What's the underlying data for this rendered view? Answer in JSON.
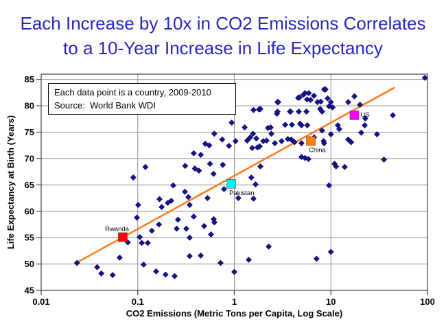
{
  "title": {
    "line1": "Each Increase by 10x in CO2 Emissions Correlates",
    "line2": "to a 10-Year Increase in Life Expectancy",
    "color": "#2727BE"
  },
  "annotation": {
    "line1": "Each data point is a country, 2009-2010",
    "line2": "Source:  World Bank WDI"
  },
  "chart_data": {
    "type": "scatter",
    "xlabel": "CO2 Emissions (Metric Tons per Capita, Log Scale)",
    "ylabel": "Life Expectancy at Birth (Years)",
    "x_scale": "log",
    "xlim": [
      0.01,
      100
    ],
    "ylim": [
      45,
      86
    ],
    "x_ticks": [
      "0.01",
      "0.1",
      "1",
      "10",
      "100"
    ],
    "y_ticks": [
      45,
      50,
      55,
      60,
      65,
      70,
      75,
      80,
      85
    ],
    "grid": true,
    "marker": "diamond",
    "marker_color": "#14148C",
    "grid_color": "#8C8C8C",
    "axis_color": "#404040",
    "points": [
      [
        0.0235,
        50.2
      ],
      [
        0.038,
        49.4
      ],
      [
        0.042,
        48.2
      ],
      [
        0.055,
        47.9
      ],
      [
        0.065,
        51.2
      ],
      [
        0.079,
        54.1
      ],
      [
        0.09,
        66.4
      ],
      [
        0.098,
        58.8
      ],
      [
        0.101,
        61.2
      ],
      [
        0.105,
        55.1
      ],
      [
        0.11,
        54.0
      ],
      [
        0.115,
        49.9
      ],
      [
        0.12,
        68.4
      ],
      [
        0.127,
        54.0
      ],
      [
        0.14,
        56.3
      ],
      [
        0.155,
        48.6
      ],
      [
        0.166,
        57.5
      ],
      [
        0.168,
        62.3
      ],
      [
        0.177,
        60.8
      ],
      [
        0.194,
        48.0
      ],
      [
        0.205,
        61.6
      ],
      [
        0.222,
        62.0
      ],
      [
        0.233,
        64.9
      ],
      [
        0.241,
        47.7
      ],
      [
        0.253,
        56.7
      ],
      [
        0.261,
        58.4
      ],
      [
        0.308,
        63.7
      ],
      [
        0.318,
        56.7
      ],
      [
        0.31,
        68.6
      ],
      [
        0.334,
        62.7
      ],
      [
        0.345,
        61.2
      ],
      [
        0.345,
        55.0
      ],
      [
        0.345,
        51.5
      ],
      [
        0.38,
        71.0
      ],
      [
        0.38,
        59.0
      ],
      [
        0.39,
        68.1
      ],
      [
        0.43,
        67.7
      ],
      [
        0.449,
        51.6
      ],
      [
        0.45,
        70.7
      ],
      [
        0.487,
        57.2
      ],
      [
        0.5,
        72.8
      ],
      [
        0.528,
        62.5
      ],
      [
        0.55,
        72.5
      ],
      [
        0.56,
        69.0
      ],
      [
        0.573,
        55.6
      ],
      [
        0.61,
        67.1
      ],
      [
        0.612,
        58.5
      ],
      [
        0.62,
        74.7
      ],
      [
        0.622,
        57.9
      ],
      [
        0.721,
        50.2
      ],
      [
        0.75,
        73.6
      ],
      [
        0.76,
        68.8
      ],
      [
        0.782,
        64.2
      ],
      [
        0.88,
        72.4
      ],
      [
        0.94,
        76.8
      ],
      [
        1.0,
        48.5
      ],
      [
        1.03,
        73.3
      ],
      [
        1.1,
        62.5
      ],
      [
        1.28,
        75.9
      ],
      [
        1.36,
        73.4
      ],
      [
        1.41,
        50.8
      ],
      [
        1.46,
        74.0
      ],
      [
        1.5,
        66.4
      ],
      [
        1.53,
        72.0
      ],
      [
        1.56,
        74.7
      ],
      [
        1.58,
        79.2
      ],
      [
        1.58,
        62.4
      ],
      [
        1.66,
        65.1
      ],
      [
        1.69,
        73.8
      ],
      [
        1.74,
        72.1
      ],
      [
        1.8,
        79.3
      ],
      [
        1.83,
        72.3
      ],
      [
        1.86,
        79.4
      ],
      [
        1.86,
        68.5
      ],
      [
        1.99,
        73.3
      ],
      [
        2.16,
        73.4
      ],
      [
        2.23,
        75.8
      ],
      [
        2.27,
        53.3
      ],
      [
        2.38,
        75.9
      ],
      [
        2.42,
        74.7
      ],
      [
        2.63,
        72.9
      ],
      [
        2.76,
        78.5
      ],
      [
        2.8,
        80.7
      ],
      [
        2.8,
        78.9
      ],
      [
        2.85,
        80.7
      ],
      [
        3.09,
        73.3
      ],
      [
        3.36,
        76.4
      ],
      [
        3.58,
        73.7
      ],
      [
        3.77,
        78.9
      ],
      [
        3.83,
        78.9
      ],
      [
        3.89,
        73.6
      ],
      [
        3.95,
        76.4
      ],
      [
        4.2,
        73.1
      ],
      [
        4.58,
        81.5
      ],
      [
        4.65,
        78.9
      ],
      [
        4.74,
        81.6
      ],
      [
        4.8,
        76.6
      ],
      [
        4.96,
        76.3
      ],
      [
        4.96,
        72.9
      ],
      [
        4.96,
        70.3
      ],
      [
        5.2,
        82.1
      ],
      [
        5.39,
        82.4
      ],
      [
        5.4,
        70.1
      ],
      [
        5.58,
        78.9
      ],
      [
        5.66,
        81.2
      ],
      [
        5.7,
        76.3
      ],
      [
        5.85,
        69.9
      ],
      [
        5.9,
        82.4
      ],
      [
        6.05,
        73.7
      ],
      [
        6.15,
        81.1
      ],
      [
        6.67,
        81.9
      ],
      [
        6.7,
        74.0
      ],
      [
        7.1,
        51.0
      ],
      [
        7.25,
        80.7
      ],
      [
        7.74,
        79.4
      ],
      [
        7.86,
        80.8
      ],
      [
        8.1,
        75.3
      ],
      [
        8.11,
        78.9
      ],
      [
        8.4,
        73.3
      ],
      [
        8.5,
        72.9
      ],
      [
        8.52,
        83.1
      ],
      [
        8.8,
        83.1
      ],
      [
        9.25,
        81.4
      ],
      [
        9.56,
        79.9
      ],
      [
        9.57,
        64.9
      ],
      [
        10.0,
        80.7
      ],
      [
        10.0,
        74.6
      ],
      [
        10.0,
        52.3
      ],
      [
        10.4,
        79.7
      ],
      [
        10.9,
        69.0
      ],
      [
        11.3,
        68.5
      ],
      [
        11.8,
        76.3
      ],
      [
        12.2,
        75.6
      ],
      [
        13.9,
        68.4
      ],
      [
        15.1,
        80.7
      ],
      [
        15.1,
        73.6
      ],
      [
        16.2,
        73.1
      ],
      [
        17.5,
        81.8
      ],
      [
        20.0,
        80.2
      ],
      [
        20.6,
        74.9
      ],
      [
        22.4,
        76.3
      ],
      [
        22.7,
        77.6
      ],
      [
        30.0,
        74.6
      ],
      [
        35.4,
        69.8
      ],
      [
        43.8,
        78.2
      ],
      [
        94.0,
        85.3
      ]
    ],
    "highlighted": [
      {
        "name": "Rwanda",
        "co2": 0.07,
        "life": 55.1,
        "color": "#FF0000",
        "label_side": "above-left"
      },
      {
        "name": "Pakistan",
        "co2": 0.93,
        "life": 65.2,
        "color": "#00F0F0",
        "label_side": "below-right"
      },
      {
        "name": "China",
        "co2": 6.2,
        "life": 73.3,
        "color": "#FF8000",
        "label_side": "below-right"
      },
      {
        "name": "US",
        "co2": 17.5,
        "life": 78.2,
        "color": "#FF00FF",
        "label_side": "right"
      }
    ],
    "trendline": {
      "color": "#FF7D1E",
      "x1": 0.023,
      "y1": 50.2,
      "x2": 45.0,
      "y2": 83.4,
      "meaning": "~10 years life expectancy per 10x CO2"
    }
  }
}
